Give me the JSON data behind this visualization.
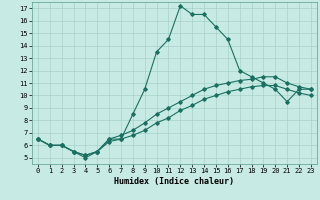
{
  "title": "",
  "xlabel": "Humidex (Indice chaleur)",
  "xlim": [
    -0.5,
    23.5
  ],
  "ylim": [
    4.5,
    17.5
  ],
  "xticks": [
    0,
    1,
    2,
    3,
    4,
    5,
    6,
    7,
    8,
    9,
    10,
    11,
    12,
    13,
    14,
    15,
    16,
    17,
    18,
    19,
    20,
    21,
    22,
    23
  ],
  "yticks": [
    5,
    6,
    7,
    8,
    9,
    10,
    11,
    12,
    13,
    14,
    15,
    16,
    17
  ],
  "bg_color": "#c8eae4",
  "grid_color": "#a0ccc4",
  "line_color": "#1a7060",
  "line1_x": [
    0,
    1,
    2,
    3,
    4,
    5,
    6,
    7,
    8,
    9,
    10,
    11,
    12,
    13,
    14,
    15,
    16,
    17,
    18,
    19,
    20,
    21,
    22,
    23
  ],
  "line1_y": [
    6.5,
    6.0,
    6.0,
    5.5,
    5.0,
    5.5,
    6.5,
    6.5,
    8.5,
    10.5,
    13.5,
    14.5,
    17.2,
    16.5,
    16.5,
    15.5,
    14.5,
    12.0,
    11.5,
    11.0,
    10.5,
    9.5,
    10.5,
    10.5
  ],
  "line2_x": [
    0,
    1,
    2,
    3,
    4,
    5,
    6,
    7,
    8,
    9,
    10,
    11,
    12,
    13,
    14,
    15,
    16,
    17,
    18,
    19,
    20,
    21,
    22,
    23
  ],
  "line2_y": [
    6.5,
    6.0,
    6.0,
    5.5,
    5.2,
    5.5,
    6.5,
    6.8,
    7.2,
    7.8,
    8.5,
    9.0,
    9.5,
    10.0,
    10.5,
    10.8,
    11.0,
    11.2,
    11.3,
    11.5,
    11.5,
    11.0,
    10.7,
    10.5
  ],
  "line3_x": [
    0,
    1,
    2,
    3,
    4,
    5,
    6,
    7,
    8,
    9,
    10,
    11,
    12,
    13,
    14,
    15,
    16,
    17,
    18,
    19,
    20,
    21,
    22,
    23
  ],
  "line3_y": [
    6.5,
    6.0,
    6.0,
    5.5,
    5.2,
    5.5,
    6.3,
    6.5,
    6.8,
    7.2,
    7.8,
    8.2,
    8.8,
    9.2,
    9.7,
    10.0,
    10.3,
    10.5,
    10.7,
    10.8,
    10.8,
    10.5,
    10.2,
    10.0
  ],
  "tick_fontsize": 5,
  "xlabel_fontsize": 6,
  "marker_size": 1.8,
  "line_width": 0.8
}
